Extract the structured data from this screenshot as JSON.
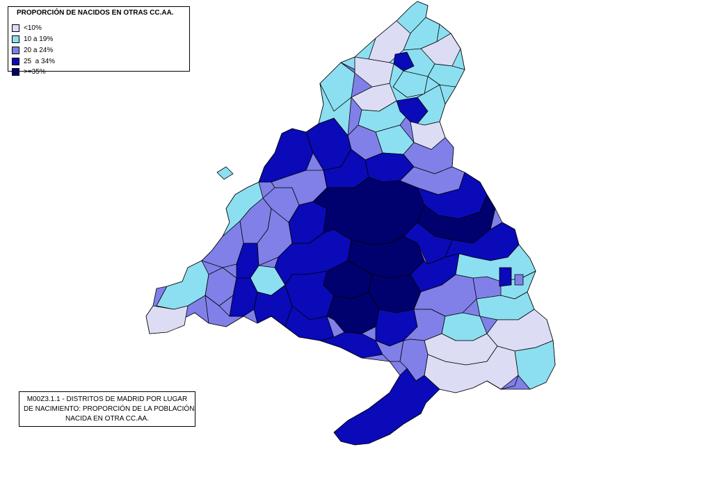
{
  "legend": {
    "title": "PROPORCIÓN DE NACIDOS EN OTRAS CC.AA.",
    "items": [
      {
        "label": "<10%",
        "color": "#dcdcf5"
      },
      {
        "label": "10 a 19%",
        "color": "#8cdff0"
      },
      {
        "label": "20 a 24%",
        "color": "#8080e8"
      },
      {
        "label": "25  a 34%",
        "color": "#0a0ab8"
      },
      {
        "label": ">=35%",
        "color": "#00006e"
      }
    ]
  },
  "caption": {
    "lines": [
      "M00Z3.1.1 - DISTRITOS DE MADRID POR LUGAR",
      "DE NACIMIENTO: PROPORCIÓN DE LA POBLACIÓN",
      "NACIDA EN OTRA CC.AA."
    ]
  },
  "map": {
    "region": "Comunidad de Madrid",
    "class_colors": [
      "#dcdcf5",
      "#8cdff0",
      "#8080e8",
      "#0a0ab8",
      "#00006e"
    ]
  }
}
